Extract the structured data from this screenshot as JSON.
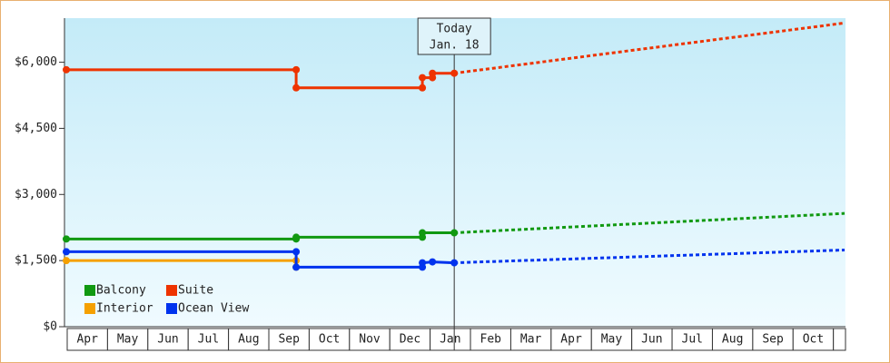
{
  "chart_data": {
    "type": "line",
    "ylim": [
      0,
      7000
    ],
    "yticks": [
      {
        "value": 0,
        "label": "$0"
      },
      {
        "value": 1500,
        "label": "$1,500"
      },
      {
        "value": 3000,
        "label": "$3,000"
      },
      {
        "value": 4500,
        "label": "$4,500"
      },
      {
        "value": 6000,
        "label": "$6,000"
      }
    ],
    "xlim": [
      0,
      19.3
    ],
    "categories": [
      "Apr",
      "May",
      "Jun",
      "Jul",
      "Aug",
      "Sep",
      "Oct",
      "Nov",
      "Dec",
      "Jan",
      "Feb",
      "Mar",
      "Apr",
      "May",
      "Jun",
      "Jul",
      "Aug",
      "Sep",
      "Oct"
    ],
    "today": {
      "x": 9.62,
      "label": "Today",
      "date": "Jan. 18"
    },
    "series": [
      {
        "name": "Balcony",
        "color": "#119911",
        "x": [
          0,
          5.7,
          5.7,
          8.83,
          8.83,
          9.62
        ],
        "values": [
          1990,
          1990,
          2030,
          2030,
          2130,
          2130
        ],
        "forecast_x": [
          9.62,
          19.3
        ],
        "forecast_values": [
          2130,
          2570
        ]
      },
      {
        "name": "Suite",
        "color": "#ee3300",
        "x": [
          0,
          5.7,
          5.7,
          8.83,
          8.83,
          9.08,
          9.08,
          9.62
        ],
        "values": [
          5830,
          5830,
          5420,
          5420,
          5650,
          5650,
          5750,
          5750
        ],
        "forecast_x": [
          9.62,
          19.3
        ],
        "forecast_values": [
          5750,
          6890
        ]
      },
      {
        "name": "Interior",
        "color": "#f5a000",
        "x": [
          0,
          5.7,
          5.7
        ],
        "values": [
          1500,
          1500,
          1350
        ],
        "forecast_x": [],
        "forecast_values": []
      },
      {
        "name": "Ocean View",
        "color": "#0033ee",
        "x": [
          0,
          5.7,
          5.7,
          8.83,
          8.83,
          9.08,
          9.62
        ],
        "values": [
          1700,
          1700,
          1350,
          1350,
          1450,
          1470,
          1450
        ],
        "forecast_x": [
          9.62,
          19.3
        ],
        "forecast_values": [
          1450,
          1740
        ]
      }
    ]
  }
}
